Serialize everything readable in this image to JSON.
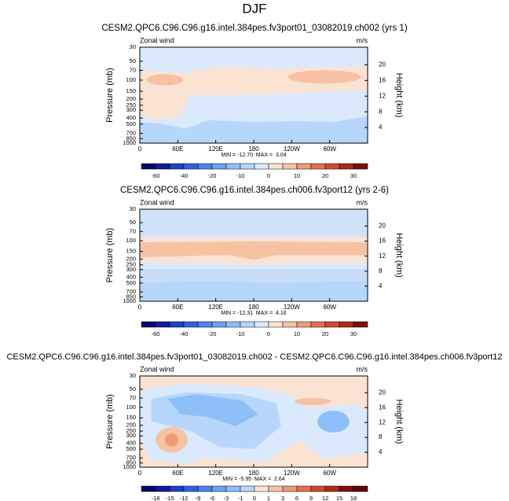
{
  "title": "DJF",
  "chart_data": [
    {
      "type": "contour",
      "title": "CESM2.QPC6.C96.C96.g16.intel.384pes.fv3port01_03082019.ch002 (yrs 1)",
      "left_label": "Zonal wind",
      "right_label": "m/s",
      "ylabel": "Pressure (mb)",
      "y2label": "Height (km)",
      "stats": "MIN = -12.70  MAX =  3.04",
      "xlim": [
        0,
        360
      ],
      "xticks": [
        0,
        {
          "value": 60,
          "label": "60E"
        },
        {
          "value": 120,
          "label": "120E"
        },
        180,
        {
          "value": 240,
          "label": "120W"
        },
        {
          "value": 300,
          "label": "60W"
        }
      ],
      "ylim": [
        1000,
        30
      ],
      "log_y": true,
      "yticks": [
        30,
        50,
        70,
        100,
        150,
        200,
        250,
        300,
        400,
        500,
        700,
        850,
        1000
      ],
      "y2lim": [
        0,
        24.5
      ],
      "y2ticks": [
        4,
        8,
        12,
        16,
        20
      ],
      "colorbar": {
        "colors": [
          "#08086b",
          "#101aa0",
          "#1f3fc8",
          "#2f62e0",
          "#4a84ee",
          "#6aa2f4",
          "#8fbff8",
          "#b7d6fb",
          "#dbe9fd",
          "#fbe3d3",
          "#f7c2a4",
          "#f09a78",
          "#e4704f",
          "#cf4a31",
          "#ae2a1c",
          "#7d0f0f"
        ],
        "ticks": [
          -60,
          -40,
          -20,
          -10,
          0,
          10,
          20,
          30
        ]
      }
    },
    {
      "type": "contour",
      "title": "CESM2.QPC6.C96.C96.g16.intel.384pes.ch006.fv3port12 (yrs 2-6)",
      "left_label": "Zonal wind",
      "right_label": "m/s",
      "ylabel": "Pressure (mb)",
      "y2label": "Height (km)",
      "stats": "MIN = -12.31  MAX =  4.16",
      "xlim": [
        0,
        360
      ],
      "xticks": [
        0,
        {
          "value": 60,
          "label": "60E"
        },
        {
          "value": 120,
          "label": "120E"
        },
        180,
        {
          "value": 240,
          "label": "120W"
        },
        {
          "value": 300,
          "label": "60W"
        }
      ],
      "ylim": [
        1000,
        30
      ],
      "log_y": true,
      "yticks": [
        30,
        50,
        70,
        100,
        150,
        200,
        250,
        300,
        400,
        500,
        700,
        850,
        1000
      ],
      "y2lim": [
        0,
        24.5
      ],
      "y2ticks": [
        4,
        8,
        12,
        16,
        20
      ],
      "colorbar": {
        "colors": [
          "#08086b",
          "#101aa0",
          "#1f3fc8",
          "#2f62e0",
          "#4a84ee",
          "#6aa2f4",
          "#8fbff8",
          "#b7d6fb",
          "#dbe9fd",
          "#fbe3d3",
          "#f7c2a4",
          "#f09a78",
          "#e4704f",
          "#cf4a31",
          "#ae2a1c",
          "#7d0f0f"
        ],
        "ticks": [
          -60,
          -40,
          -20,
          -10,
          0,
          10,
          20,
          30
        ]
      }
    },
    {
      "type": "contour",
      "title": "CESM2.QPC6.C96.C96.g16.intel.384pes.fv3port01_03082019.ch002 - CESM2.QPC6.C96.C96.g16.intel.384pes.ch006.fv3port12",
      "left_label": "Zonal wind",
      "right_label": "m/s",
      "ylabel": "Pressure (mb)",
      "y2label": "Height (km)",
      "stats": "MIN = -5.95  MAX =  2.64",
      "xlim": [
        0,
        360
      ],
      "xticks": [
        0,
        {
          "value": 60,
          "label": "60E"
        },
        {
          "value": 120,
          "label": "120E"
        },
        180,
        {
          "value": 240,
          "label": "120W"
        },
        {
          "value": 300,
          "label": "60W"
        }
      ],
      "ylim": [
        1000,
        30
      ],
      "log_y": true,
      "yticks": [
        30,
        50,
        70,
        100,
        150,
        200,
        250,
        300,
        400,
        500,
        700,
        850,
        1000
      ],
      "y2lim": [
        0,
        24.5
      ],
      "y2ticks": [
        4,
        8,
        12,
        16,
        20
      ],
      "colorbar": {
        "colors": [
          "#08086b",
          "#101aa0",
          "#1f3fc8",
          "#2f62e0",
          "#4a84ee",
          "#6aa2f4",
          "#8fbff8",
          "#b7d6fb",
          "#fbe3d3",
          "#f7c2a4",
          "#f09a78",
          "#e4704f",
          "#cf4a31",
          "#ae2a1c",
          "#7d0f0f",
          "#5a0808"
        ],
        "ticks": [
          -18,
          -15,
          -12,
          -9,
          -6,
          -3,
          -1,
          0,
          1,
          3,
          6,
          9,
          12,
          15,
          18
        ]
      }
    }
  ]
}
